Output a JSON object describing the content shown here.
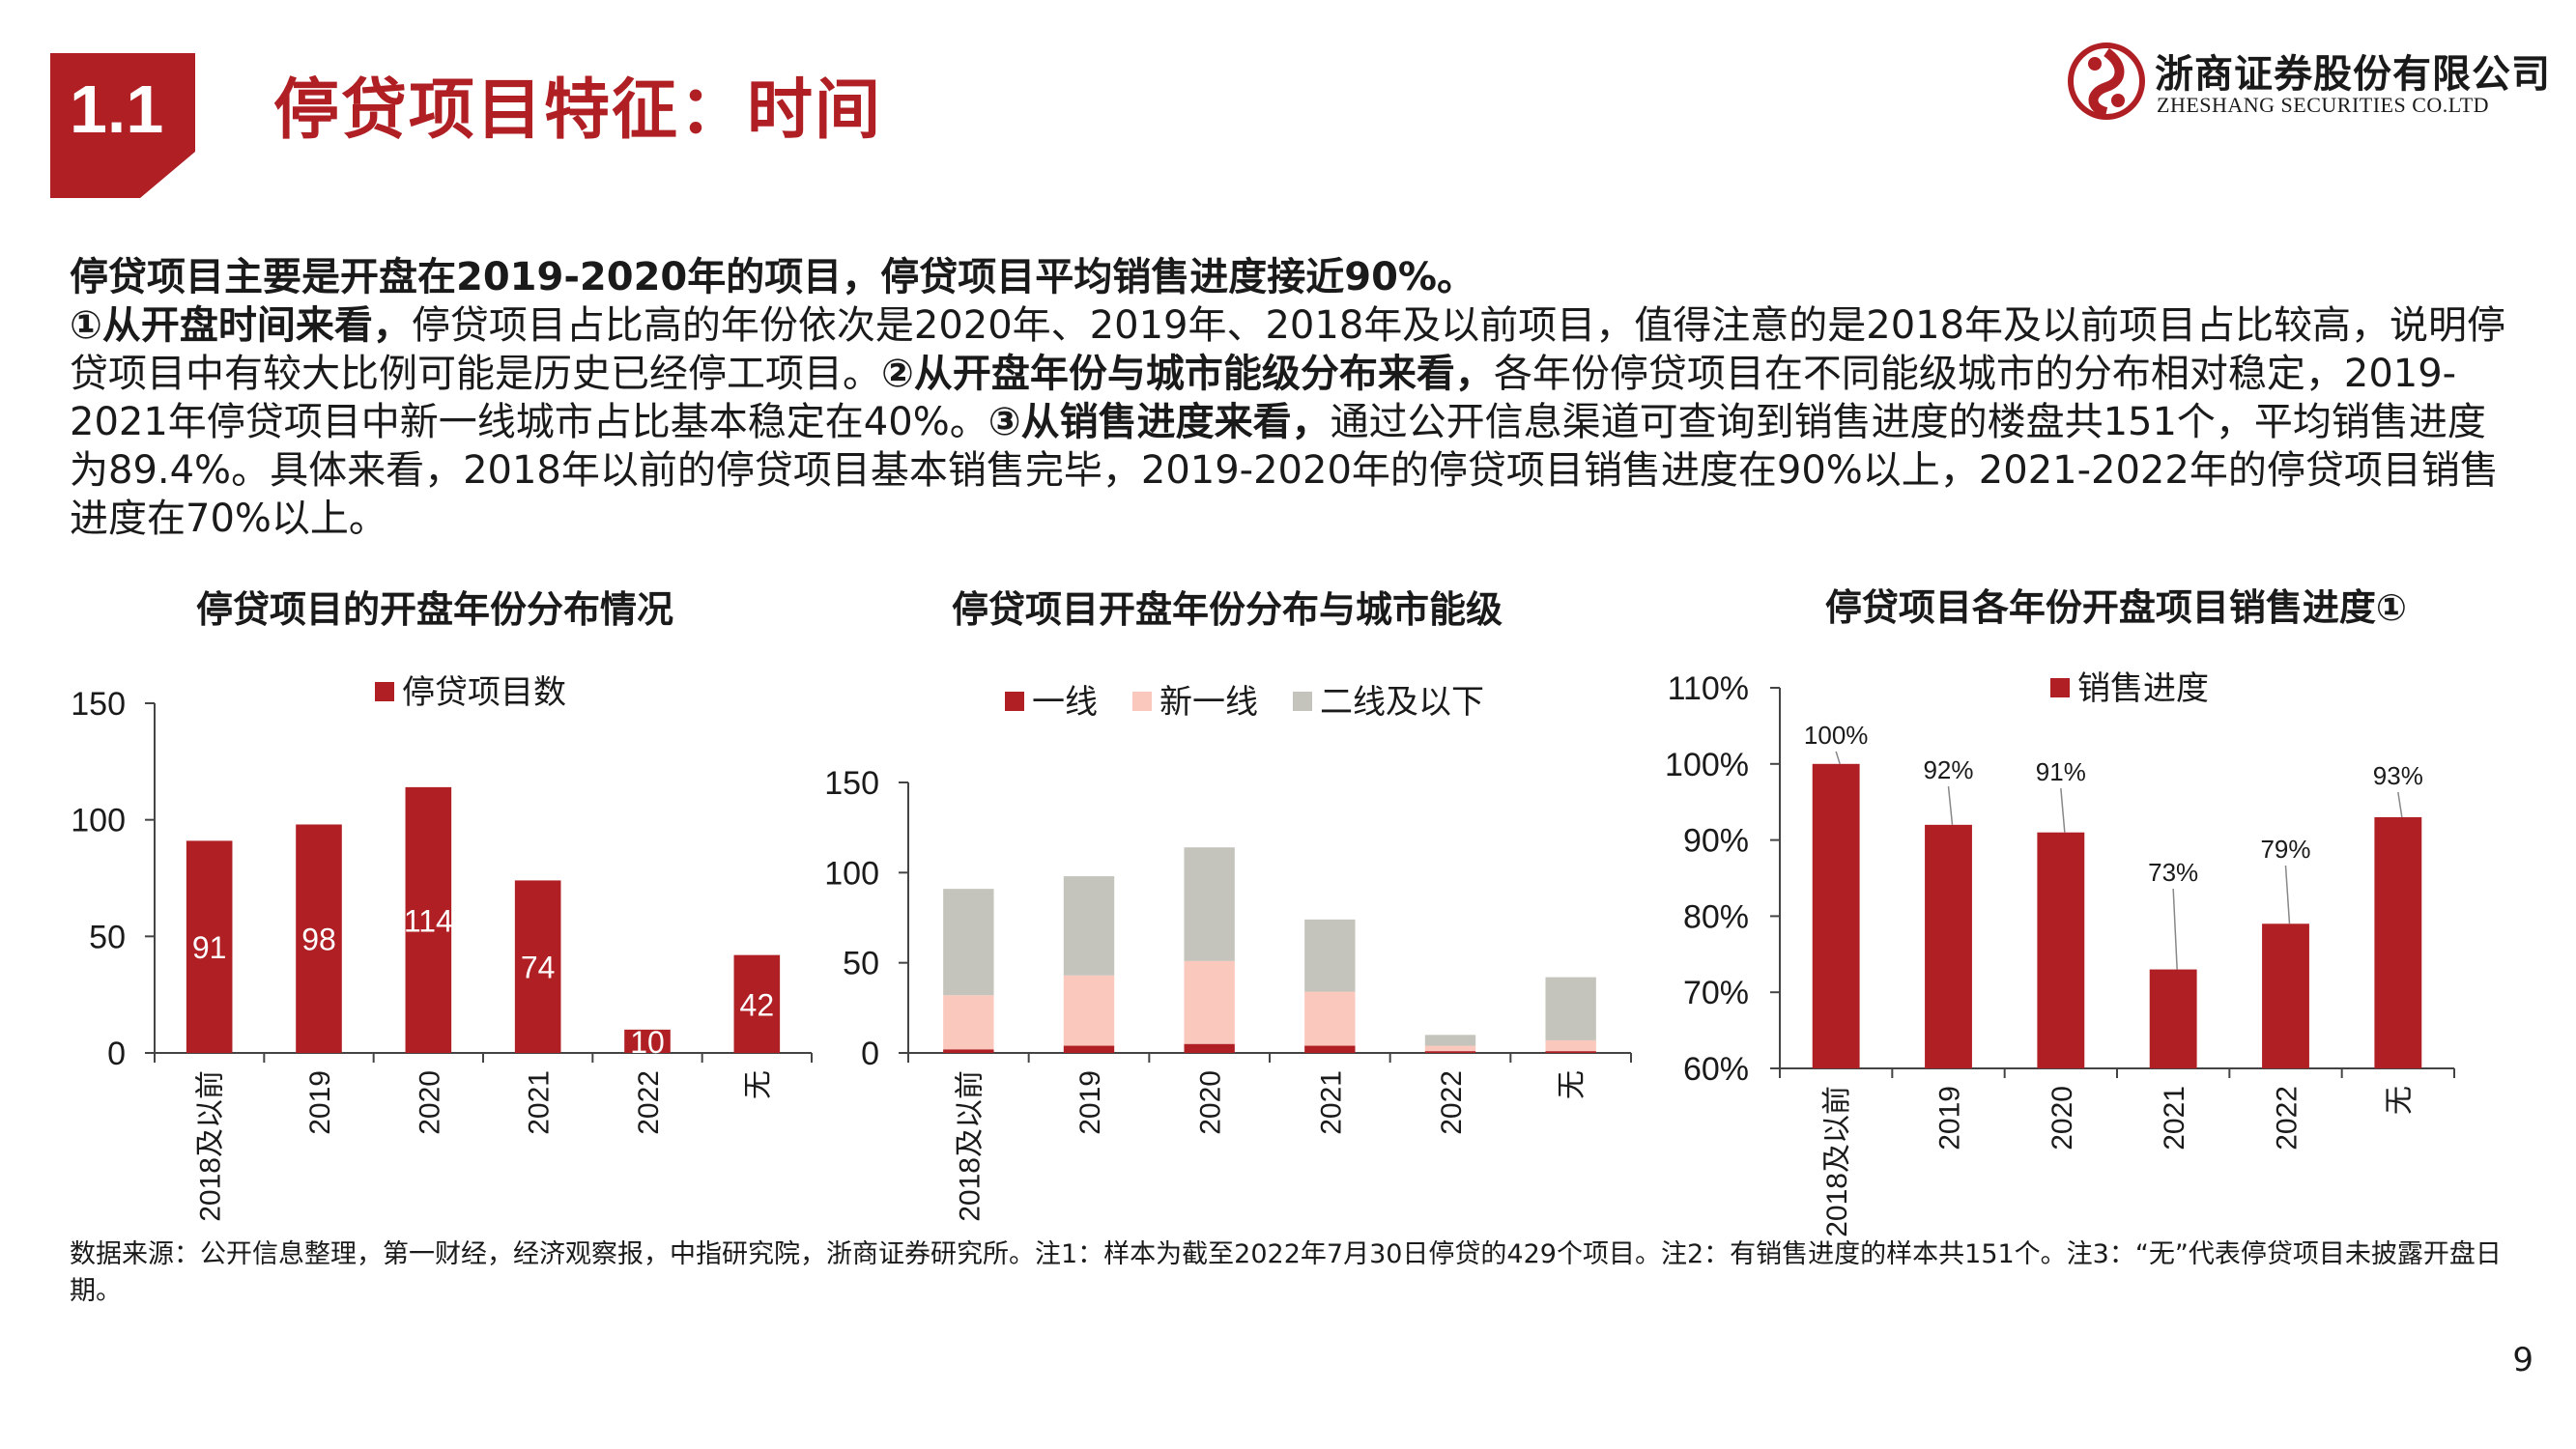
{
  "header": {
    "section_number": "1.1",
    "title": "停贷项目特征：时间",
    "logo_cn": "浙商证券股份有限公司",
    "logo_en": "ZHESHANG SECURITIES CO.LTD"
  },
  "summary": {
    "lead": "停贷项目主要是开盘在2019-2020年的项目，停贷项目平均销售进度接近90%。",
    "p1_bold": "①从开盘时间来看，",
    "p1_text": "停贷项目占比高的年份依次是2020年、2019年、2018年及以前项目，值得注意的是2018年及以前项目占比较高，说明停贷项目中有较大比例可能是历史已经停工项目。",
    "p2_bold": "②从开盘年份与城市能级分布来看，",
    "p2_text": "各年份停贷项目在不同能级城市的分布相对稳定，2019-2021年停贷项目中新一线城市占比基本稳定在40%。",
    "p3_bold": "③从销售进度来看，",
    "p3_text": "通过公开信息渠道可查询到销售进度的楼盘共151个，平均销售进度为89.4%。具体来看，2018年以前的停贷项目基本销售完毕，2019-2020年的停贷项目销售进度在90%以上，2021-2022年的停贷项目销售进度在70%以上。"
  },
  "colors": {
    "brand_red": "#b01f24",
    "tier1": "#b01f24",
    "new_tier1": "#fbc8bd",
    "tier2_below": "#c4c4bc"
  },
  "chart_data": [
    {
      "type": "bar",
      "title": "停贷项目的开盘年份分布情况",
      "categories": [
        "2018及以前",
        "2019",
        "2020",
        "2021",
        "2022",
        "无"
      ],
      "series": [
        {
          "name": "停贷项目数",
          "values": [
            91,
            98,
            114,
            74,
            10,
            42
          ]
        }
      ],
      "data_labels": [
        "91",
        "98",
        "114",
        "74",
        "10",
        "42"
      ],
      "ylim": [
        0,
        150
      ],
      "yticks": [
        0,
        50,
        100,
        150
      ],
      "ytick_labels": [
        "0",
        "50",
        "100",
        "150"
      ],
      "legend": "top"
    },
    {
      "type": "bar",
      "stacked": true,
      "title": "停贷项目开盘年份分布与城市能级",
      "categories": [
        "2018及以前",
        "2019",
        "2020",
        "2021",
        "2022",
        "无"
      ],
      "series": [
        {
          "name": "一线",
          "values": [
            2,
            4,
            5,
            4,
            1,
            1
          ]
        },
        {
          "name": "新一线",
          "values": [
            30,
            39,
            46,
            30,
            3,
            6
          ]
        },
        {
          "name": "二线及以下",
          "values": [
            59,
            55,
            63,
            40,
            6,
            35
          ]
        }
      ],
      "ylim": [
        0,
        150
      ],
      "yticks": [
        0,
        50,
        100,
        150
      ],
      "ytick_labels": [
        "0",
        "50",
        "100",
        "150"
      ],
      "legend": "top"
    },
    {
      "type": "bar",
      "title": "停贷项目各年份开盘项目销售进度①",
      "categories": [
        "2018及以前",
        "2019",
        "2020",
        "2021",
        "2022",
        "无"
      ],
      "series": [
        {
          "name": "销售进度",
          "values": [
            100,
            92,
            91,
            73,
            79,
            93
          ]
        }
      ],
      "data_labels": [
        "100%",
        "92%",
        "91%",
        "73%",
        "79%",
        "93%"
      ],
      "ylim": [
        60,
        110
      ],
      "yticks": [
        60,
        70,
        80,
        90,
        100,
        110
      ],
      "ytick_labels": [
        "60%",
        "70%",
        "80%",
        "90%",
        "100%",
        "110%"
      ],
      "legend": "top-right"
    }
  ],
  "footnote": {
    "text": "数据来源：公开信息整理，第一财经，经济观察报，中指研究院，浙商证券研究所。注1：样本为截至2022年7月30日停贷的429个项目。注2：有销售进度的样本共151个。注3：“无”代表停贷项目未披露开盘日期。"
  },
  "page_number": "9"
}
